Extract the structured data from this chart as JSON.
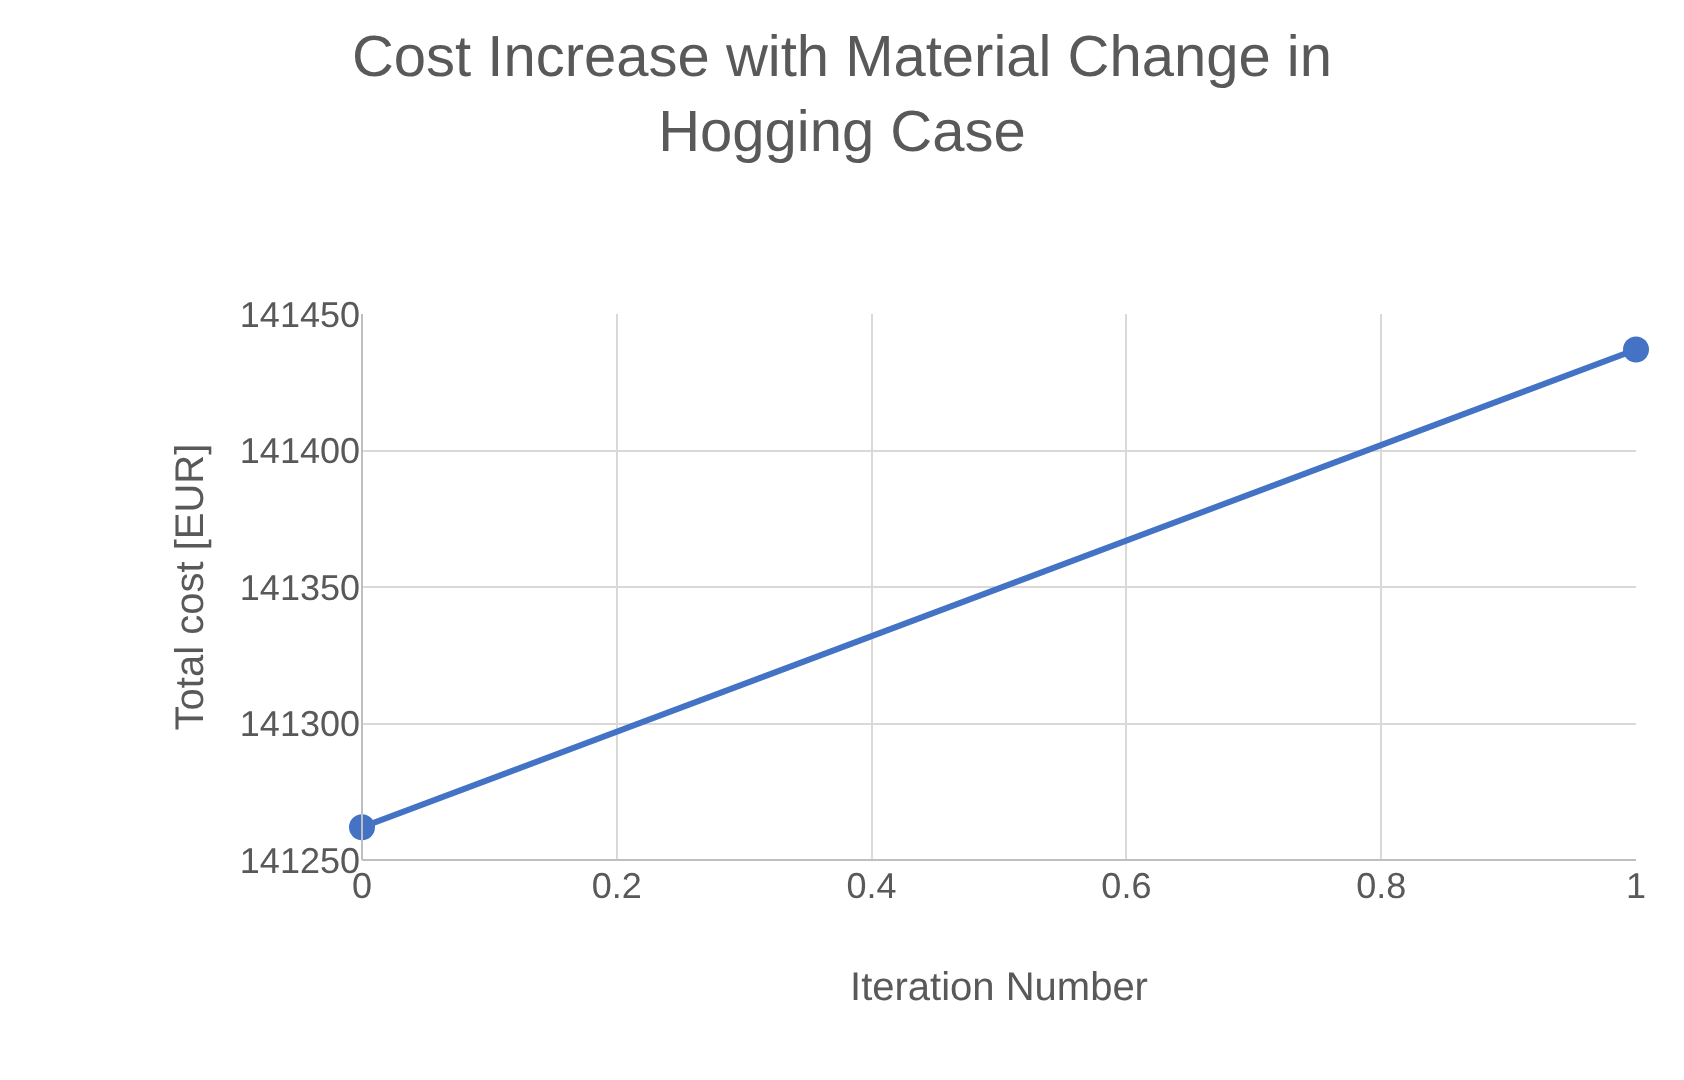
{
  "chart_data": {
    "type": "line",
    "title": "Cost Increase with Material Change in Hogging Case",
    "xlabel": "Iteration Number",
    "ylabel": "Total cost [EUR]",
    "x": [
      0,
      1
    ],
    "series": [
      {
        "color": "#4472c4",
        "values": [
          141262,
          141437
        ]
      }
    ],
    "xlim": [
      0,
      1
    ],
    "xticks": [
      0,
      0.2,
      0.4,
      0.6,
      0.8,
      1
    ],
    "ylim": [
      141250,
      141450
    ],
    "yticks": [
      141250,
      141300,
      141350,
      141400,
      141450
    ],
    "grid": true,
    "marker": "circle",
    "line_style": "solid"
  }
}
